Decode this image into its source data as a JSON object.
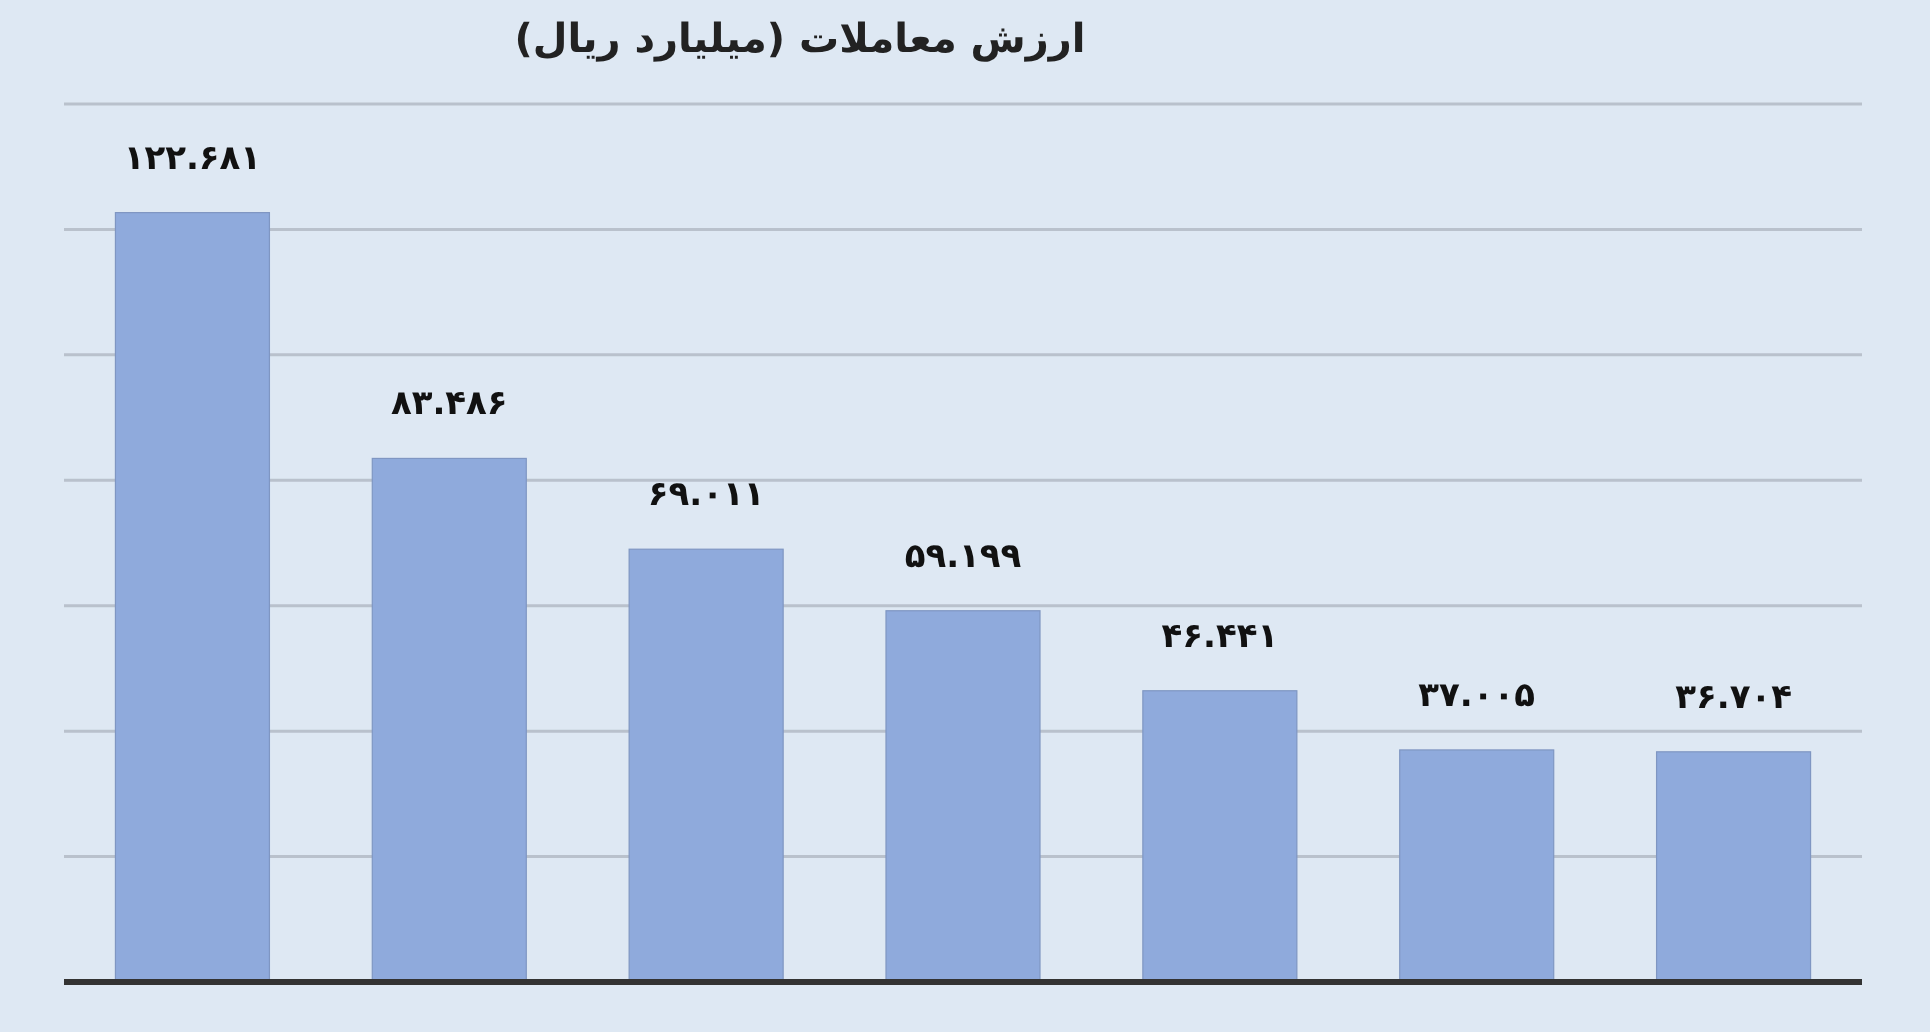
{
  "chart_data": {
    "type": "bar",
    "title": "ارزش معاملات (میلیارد ریال)",
    "categories": [
      null,
      null,
      null,
      null,
      null,
      null,
      null
    ],
    "values": [
      122.681,
      83.486,
      69.011,
      59.199,
      46.441,
      37.005,
      36.704
    ],
    "value_labels": [
      "۱۲۲.۶۸۱",
      "۸۳.۴۸۶",
      "۶۹.۰۱۱",
      "۵۹.۱۹۹",
      "۴۶.۴۴۱",
      "۳۷.۰۰۵",
      "۳۶.۷۰۴"
    ],
    "color": "#8faadc",
    "grid": "y"
  }
}
